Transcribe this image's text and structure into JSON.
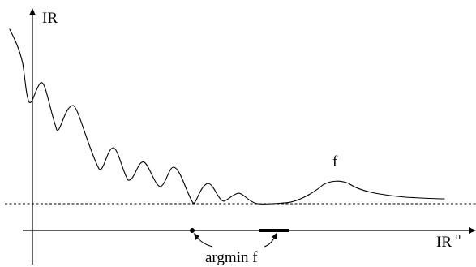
{
  "labels": {
    "y_axis": "IR",
    "x_axis_base": "IR",
    "x_axis_superscript": "n",
    "function": "f",
    "argmin": "argmin f"
  },
  "colors": {
    "ink": "#000000",
    "background": "#ffffff"
  }
}
